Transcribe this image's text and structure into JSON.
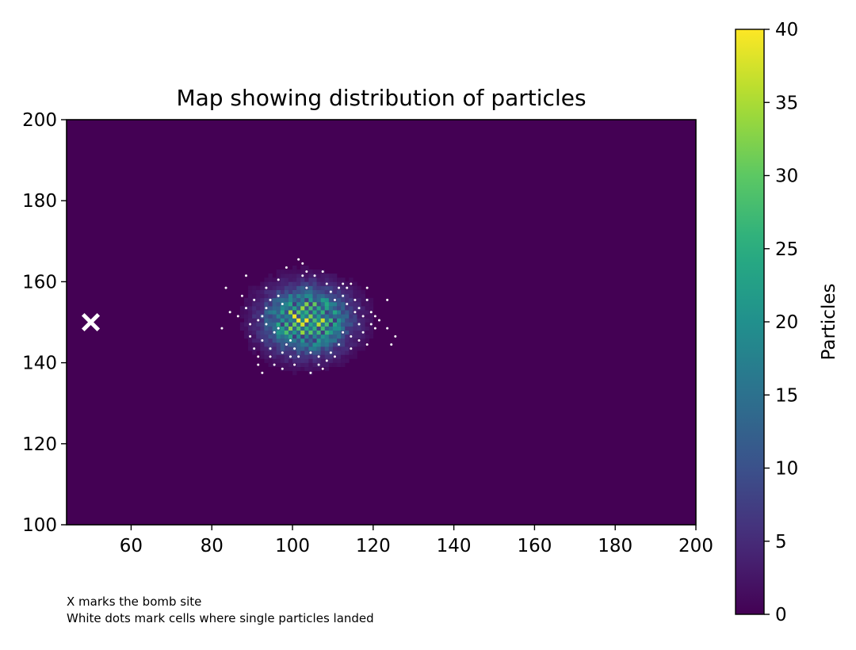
{
  "chart_data": {
    "type": "heatmap",
    "title": "Map showing distribution of particles",
    "xlim": [
      44,
      200
    ],
    "ylim": [
      100,
      200
    ],
    "x_ticks": [
      60,
      80,
      100,
      120,
      140,
      160,
      180,
      200
    ],
    "y_ticks": [
      100,
      120,
      140,
      160,
      180,
      200
    ],
    "grid": false,
    "colormap": "viridis",
    "colorbar": {
      "label": "Particles",
      "range": [
        0,
        40
      ],
      "ticks": [
        0,
        5,
        10,
        15,
        20,
        25,
        30,
        35,
        40
      ]
    },
    "distribution": {
      "center_x": 103,
      "center_y": 150,
      "spread_x": 6.5,
      "spread_y": 5,
      "peak": 40
    },
    "bomb_site": {
      "x": 50,
      "y": 150,
      "marker": "x-marker",
      "color": "#ffffff"
    },
    "single_particle_cells": [
      [
        82,
        148
      ],
      [
        83,
        158
      ],
      [
        84,
        152
      ],
      [
        87,
        156
      ],
      [
        88,
        161
      ],
      [
        89,
        149
      ],
      [
        89,
        146
      ],
      [
        90,
        143
      ],
      [
        90,
        155
      ],
      [
        91,
        139
      ],
      [
        91,
        141
      ],
      [
        92,
        137
      ],
      [
        92,
        145
      ],
      [
        92,
        151
      ],
      [
        93,
        158
      ],
      [
        93,
        153
      ],
      [
        94,
        143
      ],
      [
        94,
        141
      ],
      [
        95,
        139
      ],
      [
        95,
        147
      ],
      [
        96,
        160
      ],
      [
        96,
        156
      ],
      [
        97,
        142
      ],
      [
        97,
        138
      ],
      [
        98,
        144
      ],
      [
        98,
        163
      ],
      [
        99,
        141
      ],
      [
        100,
        139
      ],
      [
        100,
        143
      ],
      [
        101,
        165
      ],
      [
        101,
        141
      ],
      [
        102,
        164
      ],
      [
        102,
        161
      ],
      [
        103,
        162
      ],
      [
        103,
        158
      ],
      [
        104,
        137
      ],
      [
        104,
        142
      ],
      [
        105,
        161
      ],
      [
        106,
        141
      ],
      [
        106,
        139
      ],
      [
        107,
        162
      ],
      [
        107,
        138
      ],
      [
        108,
        140
      ],
      [
        108,
        159
      ],
      [
        109,
        142
      ],
      [
        109,
        157
      ],
      [
        110,
        141
      ],
      [
        111,
        144
      ],
      [
        111,
        158
      ],
      [
        112,
        159
      ],
      [
        112,
        156
      ],
      [
        113,
        154
      ],
      [
        113,
        158
      ],
      [
        114,
        159
      ],
      [
        114,
        146
      ],
      [
        115,
        152
      ],
      [
        115,
        155
      ],
      [
        116,
        149
      ],
      [
        116,
        145
      ],
      [
        117,
        151
      ],
      [
        117,
        147
      ],
      [
        118,
        158
      ],
      [
        118,
        144
      ],
      [
        119,
        152
      ],
      [
        119,
        149
      ],
      [
        120,
        151
      ],
      [
        120,
        148
      ],
      [
        121,
        150
      ],
      [
        123,
        155
      ],
      [
        123,
        148
      ],
      [
        124,
        144
      ],
      [
        125,
        146
      ],
      [
        86,
        151
      ],
      [
        88,
        153
      ],
      [
        91,
        150
      ],
      [
        94,
        155
      ],
      [
        97,
        154
      ],
      [
        99,
        145
      ],
      [
        110,
        155
      ],
      [
        112,
        147
      ],
      [
        114,
        143
      ],
      [
        116,
        153
      ],
      [
        118,
        155
      ],
      [
        96,
        148
      ],
      [
        93,
        149
      ]
    ],
    "annotations": [
      "X marks the bomb site",
      "White dots mark cells where single particles landed"
    ]
  },
  "colors": {
    "background": "#440154",
    "marker": "#ffffff",
    "frame": "#000000"
  }
}
